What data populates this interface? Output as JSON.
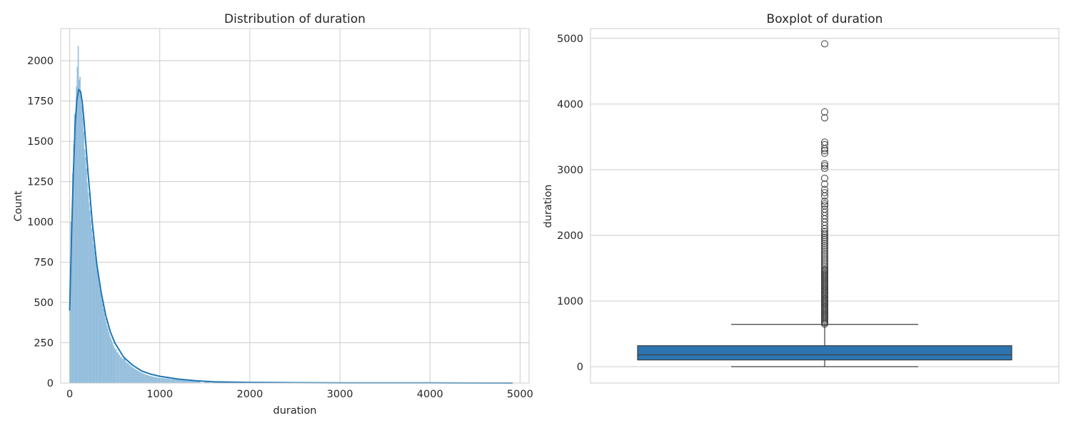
{
  "chart_data": [
    {
      "type": "histogram",
      "title": "Distribution of duration",
      "xlabel": "duration",
      "ylabel": "Count",
      "xlim": [
        -100,
        5100
      ],
      "ylim": [
        0,
        2200
      ],
      "xticks": [
        0,
        1000,
        2000,
        3000,
        4000,
        5000
      ],
      "yticks": [
        0,
        250,
        500,
        750,
        1000,
        1250,
        1500,
        1750,
        2000
      ],
      "grid": true,
      "bin_width": 10,
      "bins": [
        {
          "x": 0,
          "count": 450
        },
        {
          "x": 10,
          "count": 1000
        },
        {
          "x": 20,
          "count": 1000
        },
        {
          "x": 30,
          "count": 1300
        },
        {
          "x": 40,
          "count": 1480
        },
        {
          "x": 50,
          "count": 1670
        },
        {
          "x": 60,
          "count": 1600
        },
        {
          "x": 70,
          "count": 1840
        },
        {
          "x": 80,
          "count": 1960
        },
        {
          "x": 90,
          "count": 2090
        },
        {
          "x": 100,
          "count": 1880
        },
        {
          "x": 110,
          "count": 1900
        },
        {
          "x": 120,
          "count": 1800
        },
        {
          "x": 130,
          "count": 1720
        },
        {
          "x": 140,
          "count": 1650
        },
        {
          "x": 150,
          "count": 1560
        },
        {
          "x": 160,
          "count": 1450
        },
        {
          "x": 170,
          "count": 1400
        },
        {
          "x": 180,
          "count": 1330
        },
        {
          "x": 190,
          "count": 1240
        },
        {
          "x": 200,
          "count": 1180
        },
        {
          "x": 210,
          "count": 1120
        },
        {
          "x": 220,
          "count": 1070
        },
        {
          "x": 230,
          "count": 1010
        },
        {
          "x": 240,
          "count": 960
        },
        {
          "x": 250,
          "count": 910
        },
        {
          "x": 260,
          "count": 860
        },
        {
          "x": 270,
          "count": 820
        },
        {
          "x": 280,
          "count": 780
        },
        {
          "x": 290,
          "count": 740
        },
        {
          "x": 300,
          "count": 700
        },
        {
          "x": 310,
          "count": 660
        },
        {
          "x": 320,
          "count": 620
        },
        {
          "x": 330,
          "count": 580
        },
        {
          "x": 340,
          "count": 550
        },
        {
          "x": 350,
          "count": 520
        },
        {
          "x": 360,
          "count": 490
        },
        {
          "x": 370,
          "count": 460
        },
        {
          "x": 380,
          "count": 430
        },
        {
          "x": 390,
          "count": 400
        },
        {
          "x": 400,
          "count": 380
        },
        {
          "x": 410,
          "count": 355
        },
        {
          "x": 420,
          "count": 335
        },
        {
          "x": 430,
          "count": 315
        },
        {
          "x": 440,
          "count": 295
        },
        {
          "x": 450,
          "count": 280
        },
        {
          "x": 460,
          "count": 265
        },
        {
          "x": 470,
          "count": 250
        },
        {
          "x": 480,
          "count": 235
        },
        {
          "x": 490,
          "count": 220
        },
        {
          "x": 500,
          "count": 210
        },
        {
          "x": 520,
          "count": 190
        },
        {
          "x": 540,
          "count": 175
        },
        {
          "x": 560,
          "count": 160
        },
        {
          "x": 580,
          "count": 150
        },
        {
          "x": 600,
          "count": 160
        },
        {
          "x": 620,
          "count": 130
        },
        {
          "x": 640,
          "count": 120
        },
        {
          "x": 660,
          "count": 110
        },
        {
          "x": 680,
          "count": 100
        },
        {
          "x": 700,
          "count": 92
        },
        {
          "x": 720,
          "count": 85
        },
        {
          "x": 740,
          "count": 78
        },
        {
          "x": 760,
          "count": 72
        },
        {
          "x": 780,
          "count": 66
        },
        {
          "x": 800,
          "count": 60
        },
        {
          "x": 820,
          "count": 55
        },
        {
          "x": 840,
          "count": 51
        },
        {
          "x": 860,
          "count": 47
        },
        {
          "x": 880,
          "count": 44
        },
        {
          "x": 900,
          "count": 41
        },
        {
          "x": 920,
          "count": 38
        },
        {
          "x": 940,
          "count": 36
        },
        {
          "x": 960,
          "count": 34
        },
        {
          "x": 980,
          "count": 32
        },
        {
          "x": 1000,
          "count": 30
        },
        {
          "x": 1050,
          "count": 27
        },
        {
          "x": 1100,
          "count": 24
        },
        {
          "x": 1150,
          "count": 22
        },
        {
          "x": 1200,
          "count": 20
        },
        {
          "x": 1250,
          "count": 16
        },
        {
          "x": 1300,
          "count": 13
        },
        {
          "x": 1350,
          "count": 11
        },
        {
          "x": 1400,
          "count": 9
        },
        {
          "x": 1500,
          "count": 7
        },
        {
          "x": 1600,
          "count": 5
        },
        {
          "x": 1700,
          "count": 4
        },
        {
          "x": 1800,
          "count": 3
        },
        {
          "x": 2000,
          "count": 2
        },
        {
          "x": 2300,
          "count": 1
        },
        {
          "x": 2700,
          "count": 1
        },
        {
          "x": 3200,
          "count": 1
        },
        {
          "x": 3800,
          "count": 1
        },
        {
          "x": 4900,
          "count": 1
        }
      ],
      "kde": {
        "x": [
          0,
          20,
          40,
          60,
          80,
          100,
          120,
          140,
          160,
          180,
          200,
          250,
          300,
          350,
          400,
          450,
          500,
          600,
          700,
          800,
          900,
          1000,
          1200,
          1400,
          1600,
          2000,
          2500,
          3000,
          4000,
          4918
        ],
        "y": [
          450,
          900,
          1300,
          1600,
          1760,
          1820,
          1810,
          1740,
          1620,
          1480,
          1330,
          1000,
          740,
          560,
          420,
          320,
          250,
          160,
          110,
          75,
          55,
          42,
          25,
          14,
          8,
          4,
          2,
          1,
          1,
          0
        ]
      },
      "colors": {
        "bar": "#9ec4e0",
        "bar_edge": "#7fb2d6",
        "kde": "#1f77b4"
      }
    },
    {
      "type": "boxplot",
      "title": "Boxplot of duration",
      "ylabel": "duration",
      "ylim": [
        -250,
        5150
      ],
      "yticks": [
        0,
        1000,
        2000,
        3000,
        4000,
        5000
      ],
      "grid": true,
      "stats": {
        "whisker_low": 0,
        "q1": 102,
        "median": 180,
        "q3": 319,
        "whisker_high": 644
      },
      "outliers": [
        650,
        670,
        690,
        710,
        730,
        750,
        770,
        790,
        810,
        830,
        850,
        870,
        890,
        910,
        930,
        950,
        970,
        990,
        1010,
        1030,
        1050,
        1070,
        1090,
        1110,
        1130,
        1150,
        1170,
        1190,
        1210,
        1230,
        1250,
        1270,
        1290,
        1310,
        1330,
        1350,
        1370,
        1390,
        1410,
        1430,
        1450,
        1470,
        1490,
        1520,
        1550,
        1580,
        1610,
        1640,
        1670,
        1700,
        1730,
        1760,
        1790,
        1820,
        1850,
        1880,
        1910,
        1940,
        1970,
        2000,
        2030,
        2060,
        2100,
        2150,
        2200,
        2250,
        2300,
        2350,
        2400,
        2450,
        2480,
        2520,
        2600,
        2650,
        2700,
        2780,
        2870,
        3020,
        3060,
        3090,
        3250,
        3290,
        3320,
        3380,
        3420,
        3790,
        3880,
        4918
      ],
      "colors": {
        "box": "#2c75b0",
        "line": "#3d3d3d"
      }
    }
  ]
}
